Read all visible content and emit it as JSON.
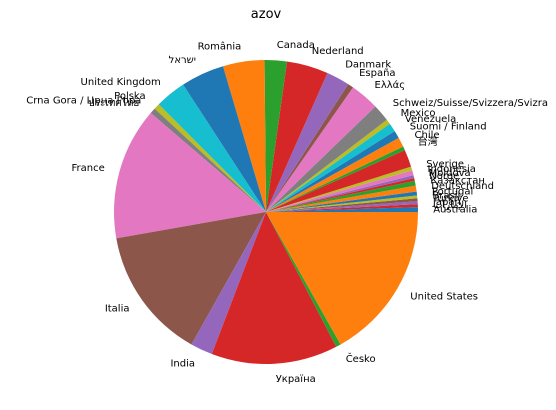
{
  "chart_data": {
    "type": "pie",
    "title": "azov",
    "start_angle_deg": 0,
    "direction": "counterclockwise",
    "slices": [
      {
        "label": "Australia",
        "value": 0.5,
        "color": "#1f77b4"
      },
      {
        "label": "الإمارات",
        "value": 0.3,
        "color": "#d62728"
      },
      {
        "label": "Japan",
        "value": 0.3,
        "color": "#9467bd"
      },
      {
        "label": "Türkiye",
        "value": 0.3,
        "color": "#8c564b"
      },
      {
        "label": "Brasil",
        "value": 0.3,
        "color": "#bcbd22"
      },
      {
        "label": "Portugal",
        "value": 0.4,
        "color": "#1f77b4"
      },
      {
        "label": "Deutschland",
        "value": 0.6,
        "color": "#ff7f0e"
      },
      {
        "label": "Қазақстан",
        "value": 0.5,
        "color": "#2ca02c"
      },
      {
        "label": "Norge",
        "value": 0.3,
        "color": "#d62728"
      },
      {
        "label": "Moldova",
        "value": 0.3,
        "color": "#9467bd"
      },
      {
        "label": "Indonesia",
        "value": 0.5,
        "color": "#e377c2"
      },
      {
        "label": "Sverige",
        "value": 0.4,
        "color": "#bcbd22"
      },
      {
        "label": "",
        "value": 1.8,
        "color": "#d62728"
      },
      {
        "label": "台灣",
        "value": 0.4,
        "color": "#2ca02c"
      },
      {
        "label": "Chile",
        "value": 1.0,
        "color": "#ff7f0e"
      },
      {
        "label": "Suomi / Finland",
        "value": 0.8,
        "color": "#1f77b4"
      },
      {
        "label": "Venezuela",
        "value": 0.9,
        "color": "#17becf"
      },
      {
        "label": "Mexico",
        "value": 0.5,
        "color": "#bcbd22"
      },
      {
        "label": "Schweiz/Suisse/Svizzera/Svizra",
        "value": 1.8,
        "color": "#7f7f7f"
      },
      {
        "label": "Ελλάς",
        "value": 3.0,
        "color": "#e377c2"
      },
      {
        "label": "España",
        "value": 0.6,
        "color": "#8c564b"
      },
      {
        "label": "Danmark",
        "value": 2.4,
        "color": "#9467bd"
      },
      {
        "label": "Nederland",
        "value": 4.3,
        "color": "#d62728"
      },
      {
        "label": "Canada",
        "value": 2.3,
        "color": "#2ca02c"
      },
      {
        "label": "România",
        "value": 4.3,
        "color": "#ff7f0e"
      },
      {
        "label": "ישראל",
        "value": 4.5,
        "color": "#1f77b4"
      },
      {
        "label": "United Kingdom",
        "value": 3.2,
        "color": "#17becf"
      },
      {
        "label": "Polska",
        "value": 0.6,
        "color": "#bcbd22"
      },
      {
        "label": "Crna Gora / Црна Гора",
        "value": 0.6,
        "color": "#7f7f7f"
      },
      {
        "label": "ประเทศไทย",
        "value": 0.0,
        "color": "#7f7f7f"
      },
      {
        "label": "France",
        "value": 13.7,
        "color": "#e377c2"
      },
      {
        "label": "Italia",
        "value": 13.7,
        "color": "#8c564b"
      },
      {
        "label": "India",
        "value": 2.3,
        "color": "#9467bd"
      },
      {
        "label": "Україна",
        "value": 13.1,
        "color": "#d62728"
      },
      {
        "label": "Česko",
        "value": 0.5,
        "color": "#2ca02c"
      },
      {
        "label": "United States",
        "value": 16.4,
        "color": "#ff7f0e"
      }
    ]
  }
}
